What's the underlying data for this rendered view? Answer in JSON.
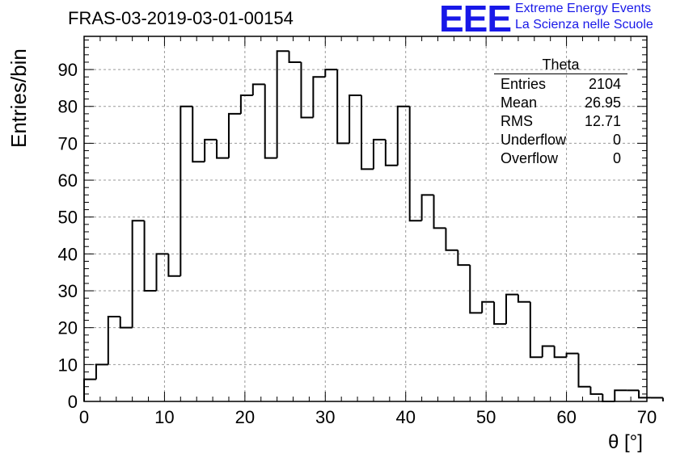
{
  "title": "FRAS-03-2019-03-01-00154",
  "logo": {
    "mark": "EEE",
    "line1": "Extreme Energy Events",
    "line2": "La Scienza nelle Scuole",
    "color": "#1818e8"
  },
  "stats_box": {
    "title": "Theta",
    "rows": [
      {
        "label": "Entries",
        "value": "2104"
      },
      {
        "label": "Mean",
        "value": "26.95"
      },
      {
        "label": "RMS",
        "value": "12.71"
      },
      {
        "label": "Underflow",
        "value": "0"
      },
      {
        "label": "Overflow",
        "value": "0"
      }
    ]
  },
  "chart_data": {
    "type": "bar",
    "histogram": true,
    "title": "FRAS-03-2019-03-01-00154",
    "xlabel": "θ [°]",
    "ylabel": "Entries/bin",
    "xlim": [
      0,
      70
    ],
    "ylim": [
      0,
      99
    ],
    "grid": true,
    "x_ticks": [
      0,
      10,
      20,
      30,
      40,
      50,
      60,
      70
    ],
    "y_ticks": [
      0,
      10,
      20,
      30,
      40,
      50,
      60,
      70,
      80,
      90
    ],
    "bin_width": 1.5,
    "bin_edges_start": 0,
    "values": [
      6,
      10,
      23,
      20,
      49,
      30,
      40,
      34,
      80,
      65,
      71,
      66,
      78,
      83,
      86,
      66,
      95,
      92,
      77,
      88,
      90,
      70,
      83,
      63,
      71,
      64,
      80,
      49,
      56,
      47,
      41,
      37,
      24,
      27,
      21,
      29,
      27,
      12,
      15,
      12,
      13,
      4,
      2,
      0,
      3,
      3,
      1,
      1
    ],
    "line_color": "#000000"
  }
}
